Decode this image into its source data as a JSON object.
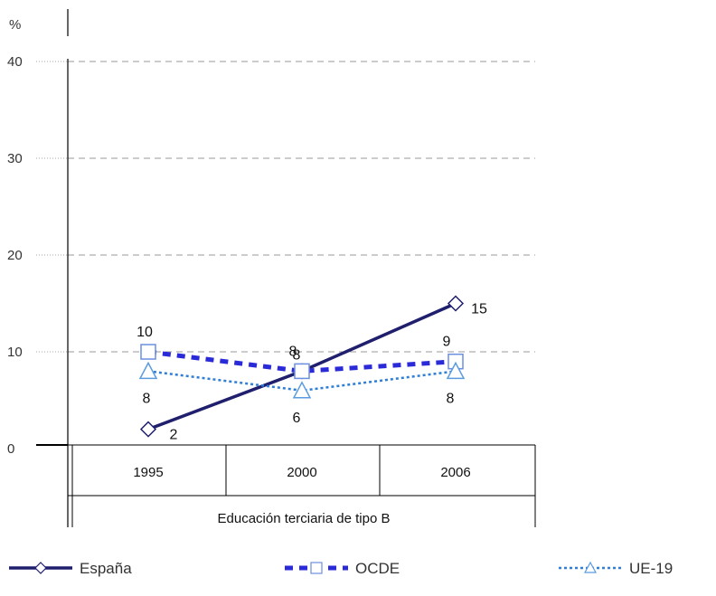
{
  "chart_data": {
    "type": "line",
    "ylabel": "%",
    "ylim": [
      0,
      40
    ],
    "yticks": [
      "0",
      "10",
      "20",
      "30",
      "40"
    ],
    "categories": [
      "1995",
      "2000",
      "2006"
    ],
    "group_label": "Educación terciaria de tipo B",
    "grid": "horizontal-dashed",
    "legend_position": "bottom",
    "series": [
      {
        "name": "España",
        "values": [
          2,
          8,
          15
        ],
        "color": "#1f1f6e",
        "style": "solid",
        "marker": "diamond"
      },
      {
        "name": "OCDE",
        "values": [
          10,
          8,
          9
        ],
        "color": "#2a2ad8",
        "style": "dashed",
        "marker": "square"
      },
      {
        "name": "UE-19",
        "values": [
          8,
          6,
          8
        ],
        "color": "#2f7fd6",
        "style": "dotted",
        "marker": "triangle"
      }
    ]
  }
}
